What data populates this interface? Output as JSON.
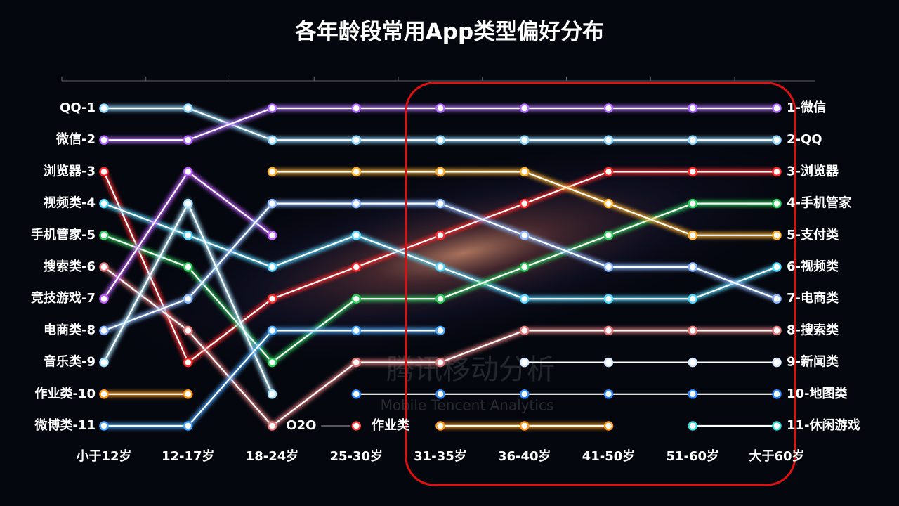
{
  "chart_data": {
    "type": "bump",
    "title": "各年龄段常用App类型偏好分布",
    "categories": [
      "小于12岁",
      "12-17岁",
      "18-24岁",
      "25-30岁",
      "31-35岁",
      "36-40岁",
      "41-50岁",
      "51-60岁",
      "大于60岁"
    ],
    "ylim": [
      1,
      11
    ],
    "y_inverted": true,
    "left_labels": [
      "QQ-1",
      "微信-2",
      "浏览器-3",
      "视频类-4",
      "手机管家-5",
      "搜索类-6",
      "竞技游戏-7",
      "电商类-8",
      "音乐类-9",
      "作业类-10",
      "微博类-11"
    ],
    "right_labels": [
      "1-微信",
      "2-QQ",
      "3-浏览器",
      "4-手机管家",
      "5-支付类",
      "6-视频类",
      "7-电商类",
      "8-搜索类",
      "9-新闻类",
      "10-地图类",
      "11-休闲游戏"
    ],
    "inline_labels": [
      {
        "text": "O2O",
        "category": 3,
        "rank": 11
      },
      {
        "text": "作业类",
        "category": 4,
        "rank": 11
      }
    ],
    "watermark": [
      "腾讯移动分析",
      "Mobile Tencent Analytics"
    ],
    "series": [
      {
        "color": "#8fd8ff",
        "values": [
          1,
          1,
          2,
          2,
          2,
          2,
          2,
          2,
          2
        ]
      },
      {
        "color": "#b26bff",
        "values": [
          2,
          2,
          1,
          1,
          1,
          1,
          1,
          1,
          1
        ]
      },
      {
        "color": "#ff2a2a",
        "values": [
          3,
          9,
          7,
          6,
          5,
          4,
          3,
          3,
          3
        ]
      },
      {
        "color": "#55d8ff",
        "values": [
          4,
          5,
          6,
          5,
          6,
          7,
          7,
          7,
          6
        ]
      },
      {
        "color": "#2ecc5a",
        "values": [
          5,
          6,
          9,
          7,
          7,
          6,
          5,
          4,
          4
        ]
      },
      {
        "color": "#e27a7a",
        "values": [
          6,
          8,
          11,
          9,
          9,
          8,
          8,
          8,
          8
        ]
      },
      {
        "color": "#c05cff",
        "values": [
          7,
          3,
          5,
          null,
          null,
          null,
          null,
          null,
          null
        ]
      },
      {
        "color": "#8ab8ff",
        "values": [
          8,
          7,
          4,
          4,
          4,
          5,
          6,
          6,
          7
        ]
      },
      {
        "color": "#a8e4ff",
        "values": [
          9,
          4,
          10,
          null,
          null,
          null,
          null,
          null,
          null
        ]
      },
      {
        "color": "#ff9a1a",
        "values": [
          10,
          10,
          null,
          null,
          11,
          11,
          11,
          null,
          null
        ]
      },
      {
        "color": "#4aa8ff",
        "values": [
          11,
          11,
          8,
          8,
          8,
          null,
          null,
          null,
          null
        ]
      },
      {
        "color": "#ffb02a",
        "values": [
          null,
          null,
          3,
          3,
          3,
          3,
          4,
          5,
          5
        ]
      },
      {
        "color": "#d8e8ff",
        "values": [
          null,
          null,
          null,
          null,
          null,
          9,
          9,
          9,
          9
        ]
      },
      {
        "color": "#2a8cff",
        "values": [
          null,
          null,
          null,
          10,
          10,
          10,
          10,
          10,
          10
        ]
      },
      {
        "color": "#33e0e0",
        "values": [
          null,
          null,
          null,
          null,
          null,
          null,
          null,
          11,
          11
        ]
      },
      {
        "color": "#ff3a3a",
        "values": [
          null,
          null,
          null,
          11,
          null,
          null,
          null,
          null,
          null
        ]
      }
    ]
  }
}
